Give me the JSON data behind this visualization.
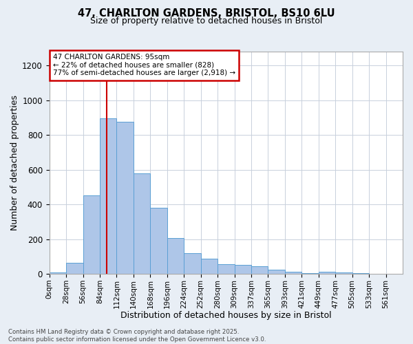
{
  "title": "47, CHARLTON GARDENS, BRISTOL, BS10 6LU",
  "subtitle": "Size of property relative to detached houses in Bristol",
  "xlabel": "Distribution of detached houses by size in Bristol",
  "ylabel": "Number of detached properties",
  "bin_labels": [
    "0sqm",
    "28sqm",
    "56sqm",
    "84sqm",
    "112sqm",
    "140sqm",
    "168sqm",
    "196sqm",
    "224sqm",
    "252sqm",
    "280sqm",
    "309sqm",
    "337sqm",
    "365sqm",
    "393sqm",
    "421sqm",
    "449sqm",
    "477sqm",
    "505sqm",
    "533sqm",
    "561sqm"
  ],
  "bar_values": [
    8,
    65,
    450,
    895,
    875,
    580,
    380,
    205,
    120,
    88,
    55,
    50,
    45,
    25,
    12,
    5,
    14,
    8,
    3,
    2,
    2
  ],
  "bar_color": "#aec6e8",
  "bar_edge_color": "#5a9fd4",
  "red_line_x": 95,
  "bin_width": 28,
  "annotation_line1": "47 CHARLTON GARDENS: 95sqm",
  "annotation_line2": "← 22% of detached houses are smaller (828)",
  "annotation_line3": "77% of semi-detached houses are larger (2,918) →",
  "annotation_box_color": "#ffffff",
  "annotation_box_edge": "#cc0000",
  "footnote": "Contains HM Land Registry data © Crown copyright and database right 2025.\nContains public sector information licensed under the Open Government Licence v3.0.",
  "ylim": [
    0,
    1280
  ],
  "yticks": [
    0,
    200,
    400,
    600,
    800,
    1000,
    1200
  ],
  "background_color": "#e8eef5",
  "plot_bg_color": "#ffffff",
  "grid_color": "#c8d0dc",
  "title_fontsize": 10.5,
  "subtitle_fontsize": 9
}
